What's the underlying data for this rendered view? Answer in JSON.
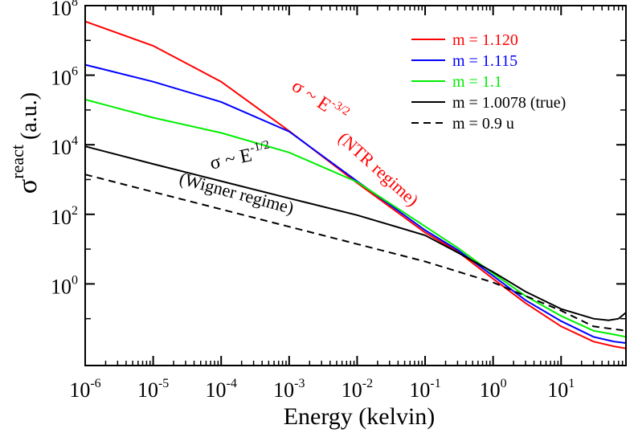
{
  "chart_data": {
    "type": "line",
    "title": "",
    "xlabel": "Energy (kelvin)",
    "ylabel": {
      "symbol": "σ",
      "superscript": "react",
      "units": "(a.u.)"
    },
    "xscale": "log",
    "yscale": "log",
    "xlim": [
      1e-06,
      90
    ],
    "ylim": [
      0.0045,
      100000000.0
    ],
    "x_ticks": [
      {
        "value": 1e-06,
        "base": "10",
        "exp": "-6"
      },
      {
        "value": 1e-05,
        "base": "10",
        "exp": "-5"
      },
      {
        "value": 0.0001,
        "base": "10",
        "exp": "-4"
      },
      {
        "value": 0.001,
        "base": "10",
        "exp": "-3"
      },
      {
        "value": 0.01,
        "base": "10",
        "exp": "-2"
      },
      {
        "value": 0.1,
        "base": "10",
        "exp": "-1"
      },
      {
        "value": 1,
        "base": "10",
        "exp": "0"
      },
      {
        "value": 10,
        "base": "10",
        "exp": "1"
      }
    ],
    "y_ticks": [
      {
        "value": 1.0,
        "base": "10",
        "exp": "0"
      },
      {
        "value": 100.0,
        "base": "10",
        "exp": "2"
      },
      {
        "value": 10000.0,
        "base": "10",
        "exp": "4"
      },
      {
        "value": 1000000.0,
        "base": "10",
        "exp": "6"
      },
      {
        "value": 100000000.0,
        "base": "10",
        "exp": "8"
      }
    ],
    "y_minor_ticks": [
      0.1,
      10.0,
      1000.0,
      100000.0,
      10000000.0
    ],
    "legend_position": "top-right",
    "series": [
      {
        "name": "m = 1.120",
        "color": "#ff0000",
        "dash": "solid",
        "x": [
          1e-06,
          1e-05,
          0.0001,
          0.001,
          0.01,
          0.1,
          0.3,
          1,
          3,
          10,
          30,
          60,
          90
        ],
        "y": [
          35000000.0,
          7000000.0,
          650000.0,
          25000.0,
          800.0,
          30.0,
          8.5,
          1.4,
          0.28,
          0.06,
          0.022,
          0.016,
          0.014
        ]
      },
      {
        "name": "m = 1.115",
        "color": "#0000ff",
        "dash": "solid",
        "x": [
          1e-06,
          1e-05,
          0.0001,
          0.001,
          0.01,
          0.1,
          0.3,
          1,
          3,
          10,
          30,
          60,
          90
        ],
        "y": [
          2000000.0,
          650000.0,
          170000.0,
          24000.0,
          900.0,
          35.0,
          9.5,
          1.7,
          0.34,
          0.085,
          0.03,
          0.022,
          0.02
        ]
      },
      {
        "name": "m = 1.1",
        "color": "#00ee00",
        "dash": "solid",
        "x": [
          1e-06,
          1e-05,
          0.0001,
          0.001,
          0.01,
          0.1,
          0.3,
          1,
          3,
          10,
          30,
          60,
          90
        ],
        "y": [
          200000.0,
          60000.0,
          22000.0,
          6000.0,
          850.0,
          45.0,
          11.0,
          2.0,
          0.45,
          0.12,
          0.045,
          0.035,
          0.03
        ]
      },
      {
        "name": "m = 1.0078 (true)",
        "color": "#000000",
        "dash": "solid",
        "x": [
          1e-06,
          1e-05,
          0.0001,
          0.001,
          0.01,
          0.1,
          0.3,
          1,
          3,
          10,
          30,
          50,
          70,
          90
        ],
        "y": [
          9000.0,
          2800.0,
          900.0,
          290.0,
          95.0,
          25.0,
          8,
          2.2,
          0.6,
          0.19,
          0.1,
          0.09,
          0.1,
          0.15
        ]
      },
      {
        "name": "m = 0.9 u",
        "color": "#000000",
        "dash": "dashed",
        "x": [
          1e-06,
          1e-05,
          0.0001,
          0.001,
          0.01,
          0.1,
          1,
          10,
          30,
          90
        ],
        "y": [
          1400.0,
          440.0,
          140.0,
          44.0,
          14.0,
          4.4,
          1.1,
          0.17,
          0.06,
          0.045
        ]
      }
    ],
    "annotations": [
      {
        "id": "ntr-law",
        "base": "σ ~  E",
        "exp": "-3/2",
        "color": "#ff0000",
        "x": 0.0025,
        "y": 130000.0,
        "angle": 34
      },
      {
        "id": "ntr-regime",
        "text": "(NTR regime)",
        "color": "#ff0000",
        "x": 0.018,
        "y": 1500.0,
        "angle": 42
      },
      {
        "id": "wigner-law",
        "base": "σ ~  E",
        "exp": "-1/2",
        "color": "#000000",
        "x": 0.0002,
        "y": 3000.0,
        "angle": -12
      },
      {
        "id": "wigner-regime",
        "text": "(Wigner regime)",
        "color": "#000000",
        "x": 0.00016,
        "y": 280.0,
        "angle": 15
      }
    ]
  }
}
